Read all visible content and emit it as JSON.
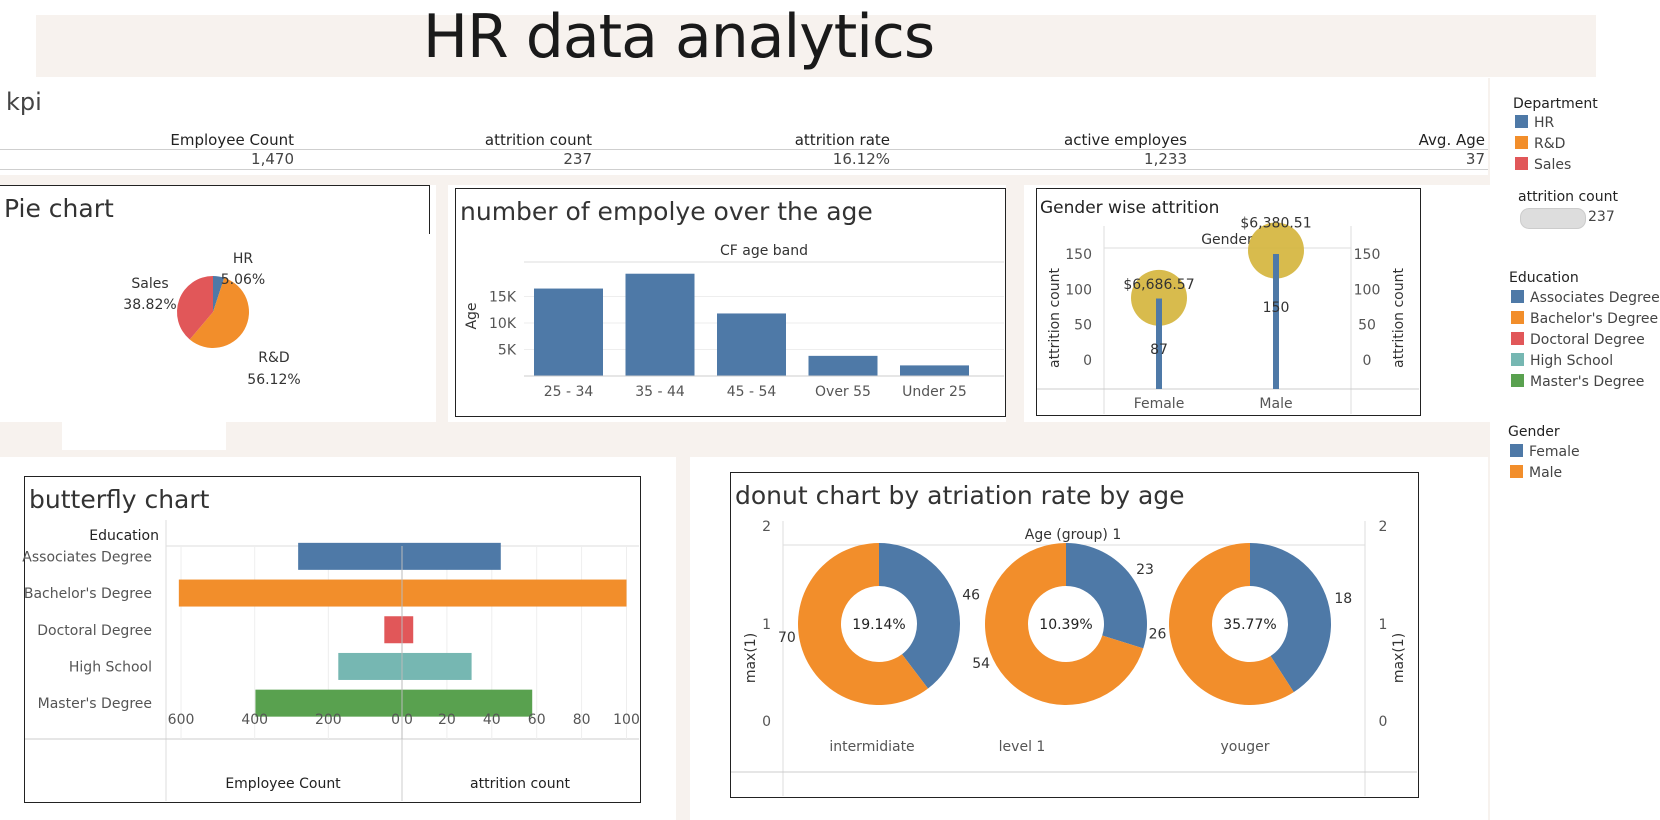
{
  "title": "HR data analytics",
  "kpi": {
    "title": "kpi",
    "items": [
      {
        "label": "Employee Count",
        "value": "1,470"
      },
      {
        "label": "attrition count",
        "value": "237"
      },
      {
        "label": "attrition rate",
        "value": "16.12%"
      },
      {
        "label": "active employes",
        "value": "1,233"
      },
      {
        "label": "Avg. Age",
        "value": "37"
      }
    ]
  },
  "colors": {
    "blue": "#4e79a7",
    "orange": "#f28e2b",
    "red": "#e15759",
    "teal": "#76b7b2",
    "green": "#59a14f",
    "gold": "#d4b43a"
  },
  "legend": {
    "department": {
      "title": "Department",
      "items": [
        "HR",
        "R&D",
        "Sales"
      ]
    },
    "attrition": {
      "title": "attrition count",
      "value": "237"
    },
    "education": {
      "title": "Education",
      "items": [
        "Associates Degree",
        "Bachelor's Degree",
        "Doctoral Degree",
        "High School",
        "Master's Degree"
      ]
    },
    "gender": {
      "title": "Gender",
      "items": [
        "Female",
        "Male"
      ]
    }
  },
  "chart_data": [
    {
      "id": "pie",
      "type": "pie",
      "title": "Pie chart",
      "slices": [
        {
          "label": "HR",
          "value": 5.06,
          "text": "5.06%"
        },
        {
          "label": "R&D",
          "value": 56.12,
          "text": "56.12%"
        },
        {
          "label": "Sales",
          "value": 38.82,
          "text": "38.82%"
        }
      ]
    },
    {
      "id": "age_bar",
      "type": "bar",
      "title": "number of empolye over the age",
      "header": "CF age band",
      "ylabel": "Age",
      "categories": [
        "25 - 34",
        "35 - 44",
        "45 - 54",
        "Over 55",
        "Under 25"
      ],
      "values": [
        16500,
        19300,
        11800,
        3800,
        2000
      ],
      "yticks": [
        5000,
        10000,
        15000
      ],
      "ytick_labels": [
        "5K",
        "10K",
        "15K"
      ],
      "ylim": [
        0,
        20000
      ]
    },
    {
      "id": "gender",
      "type": "scatter",
      "title": "Gender wise attrition",
      "header": "Gender",
      "ylabel": "attrition count",
      "categories": [
        "Female",
        "Male"
      ],
      "counts": [
        87,
        150
      ],
      "count_labels": [
        "87",
        "150"
      ],
      "bubble_values": [
        88,
        155
      ],
      "bubble_labels": [
        "$6,686.57",
        "$6,380.51"
      ],
      "yticks": [
        0,
        50,
        100,
        150
      ],
      "ylim": [
        0,
        170
      ]
    },
    {
      "id": "butterfly",
      "type": "bar",
      "title": "butterfly chart",
      "row_header": "Education",
      "categories": [
        "Associates Degree",
        "Bachelor's Degree",
        "Doctoral Degree",
        "High School",
        "Master's Degree"
      ],
      "series": [
        {
          "name": "Employee Count",
          "values": [
            282,
            606,
            48,
            173,
            398
          ]
        },
        {
          "name": "attrition count",
          "values": [
            44,
            100,
            5,
            31,
            58
          ]
        }
      ],
      "left_ticks": [
        600,
        400,
        200,
        0
      ],
      "right_ticks": [
        0,
        20,
        40,
        60,
        80,
        100
      ],
      "left_lim": [
        0,
        630
      ],
      "right_lim": [
        0,
        102
      ]
    },
    {
      "id": "donut",
      "type": "pie",
      "title": "donut chart by atriation rate by age",
      "header": "Age (group) 1",
      "ylabel": "max(1)",
      "yticks": [
        0,
        1,
        2
      ],
      "groups": [
        {
          "name": "intermidiate",
          "center": "19.14%",
          "blue": 46,
          "orange": 70
        },
        {
          "name": "level 1",
          "center": "10.39%",
          "blue": 23,
          "orange": 54
        },
        {
          "name": "youger",
          "center": "35.77%",
          "blue": 18,
          "orange": 26
        }
      ]
    }
  ]
}
